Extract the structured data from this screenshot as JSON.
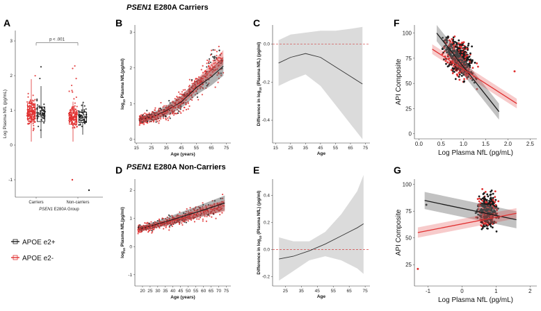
{
  "figure": {
    "title_carriers_gene": "PSEN1",
    "title_carriers_rest": " E280A Carriers",
    "title_noncarriers_gene": "PSEN1",
    "title_noncarriers_rest": " E280A Non-Carriers",
    "legend": [
      {
        "label": "APOE e2+",
        "color": "#1a1a1a"
      },
      {
        "label": "APOE e2-",
        "color": "#e03030"
      }
    ],
    "colors": {
      "e2pos": "#1a1a1a",
      "e2neg": "#e03030",
      "band": "#bdbdbd"
    }
  },
  "chart_data": [
    {
      "panel": "A",
      "type": "scatter",
      "subtype": "box-jitter",
      "ylabel": "Log Plasma NfL (pg/mL)",
      "xlabel_gene": "PSEN1",
      "xlabel_rest": " E280A Group",
      "categories": [
        "Carriers",
        "Non-carriers"
      ],
      "ylim": [
        -1.5,
        3.3
      ],
      "yticks": [
        "-1",
        "0",
        "1",
        "2",
        "3"
      ],
      "annotation": "p < .001",
      "boxes": [
        {
          "category": "Carriers",
          "group": "APOE e2-",
          "q1": 0.75,
          "median": 0.95,
          "q3": 1.2,
          "lo": 0.1,
          "hi": 1.9
        },
        {
          "category": "Carriers",
          "group": "APOE e2+",
          "q1": 0.68,
          "median": 0.88,
          "q3": 1.1,
          "lo": 0.2,
          "hi": 1.7
        },
        {
          "category": "Non-carriers",
          "group": "APOE e2-",
          "q1": 0.6,
          "median": 0.8,
          "q3": 0.95,
          "lo": 0.1,
          "hi": 1.25
        },
        {
          "category": "Non-carriers",
          "group": "APOE e2+",
          "q1": 0.65,
          "median": 0.8,
          "q3": 0.95,
          "lo": 0.3,
          "hi": 1.2
        }
      ]
    },
    {
      "panel": "B",
      "type": "scatter",
      "xlabel": "Age (years)",
      "ylabel_pre": "log",
      "ylabel_sub": "10",
      "ylabel_post": " Plasma NfL(pg/ml)",
      "xlim": [
        14,
        78
      ],
      "ylim": [
        -0.1,
        3.2
      ],
      "xticks": [
        "15",
        "25",
        "35",
        "45",
        "55",
        "65",
        "75"
      ],
      "yticks": [
        "0",
        "1",
        "2",
        "3"
      ],
      "fit_e2neg": [
        [
          17,
          0.55
        ],
        [
          25,
          0.62
        ],
        [
          35,
          0.78
        ],
        [
          45,
          1.08
        ],
        [
          55,
          1.5
        ],
        [
          65,
          1.95
        ],
        [
          73,
          2.3
        ]
      ],
      "fit_e2pos": [
        [
          17,
          0.55
        ],
        [
          25,
          0.62
        ],
        [
          35,
          0.8
        ],
        [
          45,
          1.05
        ],
        [
          55,
          1.45
        ],
        [
          65,
          1.75
        ],
        [
          73,
          2.05
        ]
      ]
    },
    {
      "panel": "C",
      "type": "line",
      "xlabel": "Age",
      "ylabel_pre": "Difference in log",
      "ylabel_sub": "10",
      "ylabel_post": " (Plasma NfL) (pg/ml)",
      "xlim": [
        13,
        78
      ],
      "ylim": [
        -0.52,
        0.1
      ],
      "xticks": [
        "15",
        "25",
        "35",
        "45",
        "55",
        "65",
        "75"
      ],
      "yticks": [
        "0.0",
        "-0.2",
        "-0.4"
      ],
      "reference_y": 0,
      "line": [
        [
          17,
          -0.1
        ],
        [
          25,
          -0.07
        ],
        [
          35,
          -0.05
        ],
        [
          45,
          -0.07
        ],
        [
          55,
          -0.12
        ],
        [
          65,
          -0.17
        ],
        [
          73,
          -0.21
        ]
      ],
      "lower": [
        [
          17,
          -0.22
        ],
        [
          25,
          -0.19
        ],
        [
          35,
          -0.16
        ],
        [
          45,
          -0.22
        ],
        [
          55,
          -0.32
        ],
        [
          65,
          -0.42
        ],
        [
          73,
          -0.5
        ]
      ],
      "upper": [
        [
          17,
          0.02
        ],
        [
          25,
          0.05
        ],
        [
          35,
          0.06
        ],
        [
          45,
          0.07
        ],
        [
          55,
          0.07
        ],
        [
          65,
          0.08
        ],
        [
          73,
          0.09
        ]
      ]
    },
    {
      "panel": "D",
      "type": "scatter",
      "xlabel": "Age (years)",
      "ylabel_pre": "log",
      "ylabel_sub": "10",
      "ylabel_post": " Plasma NfL(pg/ml)",
      "xlim": [
        15,
        78
      ],
      "ylim": [
        -1.4,
        2.4
      ],
      "xticks": [
        "20",
        "25",
        "30",
        "35",
        "40",
        "45",
        "50",
        "55",
        "60",
        "65",
        "70",
        "75"
      ],
      "yticks": [
        "-1",
        "0",
        "1",
        "2"
      ],
      "fit_e2neg": [
        [
          18,
          0.62
        ],
        [
          30,
          0.78
        ],
        [
          45,
          1.0
        ],
        [
          60,
          1.25
        ],
        [
          74,
          1.45
        ]
      ],
      "fit_e2pos": [
        [
          18,
          0.62
        ],
        [
          30,
          0.8
        ],
        [
          45,
          1.05
        ],
        [
          60,
          1.3
        ],
        [
          74,
          1.55
        ]
      ]
    },
    {
      "panel": "E",
      "type": "line",
      "xlabel": "Age",
      "ylabel_pre": "Difference in log",
      "ylabel_sub": "10",
      "ylabel_post": " (Plasma NfL) (pg/ml)",
      "xlim": [
        17,
        78
      ],
      "ylim": [
        -0.27,
        0.52
      ],
      "xticks": [
        "25",
        "35",
        "45",
        "55",
        "65",
        "75"
      ],
      "yticks": [
        "-0.2",
        "0.0",
        "0.2",
        "0.4"
      ],
      "reference_y": 0,
      "line": [
        [
          21,
          -0.07
        ],
        [
          30,
          -0.05
        ],
        [
          40,
          -0.01
        ],
        [
          50,
          0.04
        ],
        [
          60,
          0.1
        ],
        [
          70,
          0.16
        ],
        [
          74,
          0.19
        ]
      ],
      "lower": [
        [
          21,
          -0.23
        ],
        [
          30,
          -0.16
        ],
        [
          40,
          -0.08
        ],
        [
          50,
          -0.05
        ],
        [
          60,
          -0.08
        ],
        [
          70,
          -0.14
        ],
        [
          74,
          -0.18
        ]
      ],
      "upper": [
        [
          21,
          0.09
        ],
        [
          30,
          0.06
        ],
        [
          40,
          0.06
        ],
        [
          50,
          0.13
        ],
        [
          60,
          0.26
        ],
        [
          70,
          0.43
        ],
        [
          74,
          0.55
        ]
      ]
    },
    {
      "panel": "F",
      "type": "scatter",
      "xlabel": "Log Plasma NfL (pg/mL)",
      "ylabel": "API Composite",
      "xlim": [
        -0.1,
        2.65
      ],
      "ylim": [
        -5,
        108
      ],
      "xticks": [
        "0.0",
        "0.5",
        "1.0",
        "1.5",
        "2.0",
        "2.5"
      ],
      "yticks": [
        "0",
        "25",
        "50",
        "75",
        "100"
      ],
      "fit_e2neg": [
        [
          0.3,
          84
        ],
        [
          2.2,
          30
        ]
      ],
      "fit_e2pos": [
        [
          0.4,
          100
        ],
        [
          1.8,
          22
        ]
      ]
    },
    {
      "panel": "G",
      "type": "scatter",
      "xlabel": "Log Plasma NfL (pg/mL)",
      "ylabel": "API Composite",
      "xlim": [
        -1.4,
        2.2
      ],
      "ylim": [
        5,
        105
      ],
      "xticks": [
        "-1",
        "0",
        "1",
        "2"
      ],
      "yticks": [
        "25",
        "50",
        "75",
        "100"
      ],
      "fit_e2neg": [
        [
          -1.3,
          55
        ],
        [
          1.6,
          73
        ]
      ],
      "fit_e2pos": [
        [
          -1.1,
          85
        ],
        [
          1.6,
          67
        ]
      ]
    }
  ]
}
